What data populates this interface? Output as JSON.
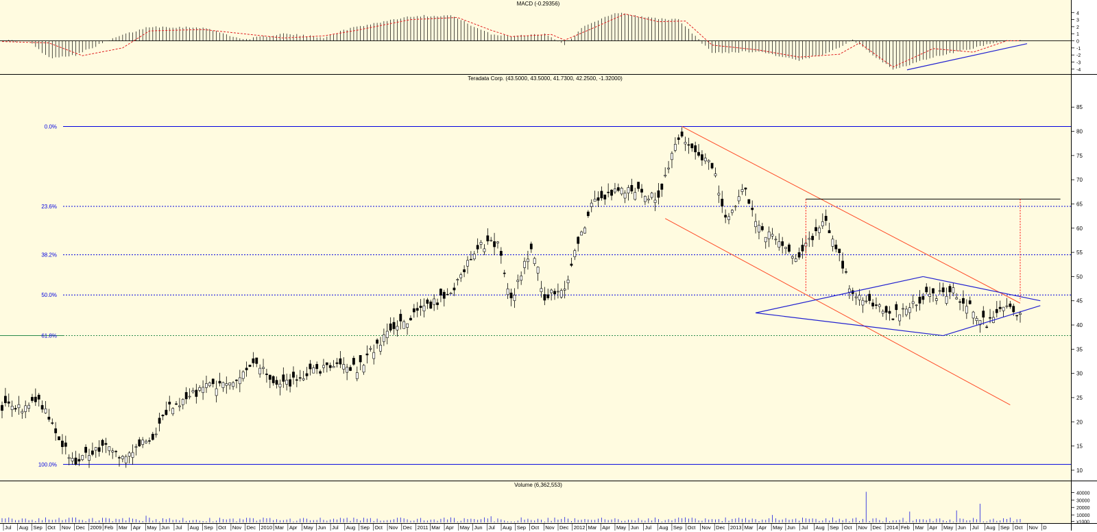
{
  "colors": {
    "panel_bg": "#fffbe0",
    "axis_bg": "#ffffff",
    "candle": "#000000",
    "fib": "#0000e0",
    "fib_618": "#2a8a4a",
    "channel": "#ff4a26",
    "triangle": "#2020d0",
    "macd_signal": "#e02020",
    "volume": "#3030e0",
    "measure": "#ff0000"
  },
  "macd": {
    "title": "MACD (-0.29356)",
    "ylim": [
      -4.5,
      4.8
    ],
    "ticks": [
      {
        "label": "4",
        "v": 4
      },
      {
        "label": "3",
        "v": 3
      },
      {
        "label": "2",
        "v": 2
      },
      {
        "label": "1",
        "v": 1
      },
      {
        "label": "0",
        "v": 0
      },
      {
        "label": "-1",
        "v": -1
      },
      {
        "label": "-2",
        "v": -2
      },
      {
        "label": "-3",
        "v": -3
      },
      {
        "label": "-4",
        "v": -4
      }
    ],
    "hist_keypoints": [
      [
        0,
        0.1
      ],
      [
        8,
        -0.1
      ],
      [
        14,
        -2.4
      ],
      [
        22,
        -2.0
      ],
      [
        34,
        0.5
      ],
      [
        44,
        2.0
      ],
      [
        60,
        1.9
      ],
      [
        72,
        0.2
      ],
      [
        84,
        1.0
      ],
      [
        96,
        0.5
      ],
      [
        104,
        1.8
      ],
      [
        122,
        3.5
      ],
      [
        134,
        3.6
      ],
      [
        146,
        0.9
      ],
      [
        152,
        0.7
      ],
      [
        162,
        1.0
      ],
      [
        168,
        -0.5
      ],
      [
        174,
        2.2
      ],
      [
        184,
        4.0
      ],
      [
        194,
        3.2
      ],
      [
        202,
        3.0
      ],
      [
        212,
        -1.7
      ],
      [
        226,
        -1.5
      ],
      [
        238,
        -2.8
      ],
      [
        246,
        -1.9
      ],
      [
        254,
        0.2
      ],
      [
        266,
        -4.1
      ],
      [
        278,
        -2.3
      ],
      [
        290,
        -1.0
      ],
      [
        300,
        0.0
      ],
      [
        304,
        0.0
      ]
    ],
    "signal_keypoints": [
      [
        0,
        -0.1
      ],
      [
        14,
        -0.3
      ],
      [
        24,
        -2.1
      ],
      [
        36,
        -1.0
      ],
      [
        44,
        1.4
      ],
      [
        60,
        1.6
      ],
      [
        72,
        1.0
      ],
      [
        84,
        0.4
      ],
      [
        96,
        0.7
      ],
      [
        106,
        1.5
      ],
      [
        122,
        3.0
      ],
      [
        136,
        3.3
      ],
      [
        146,
        1.5
      ],
      [
        152,
        0.6
      ],
      [
        164,
        0.9
      ],
      [
        168,
        0.1
      ],
      [
        176,
        1.7
      ],
      [
        186,
        3.8
      ],
      [
        196,
        2.7
      ],
      [
        204,
        2.8
      ],
      [
        212,
        -0.6
      ],
      [
        226,
        -1.3
      ],
      [
        238,
        -2.3
      ],
      [
        250,
        -1.9
      ],
      [
        256,
        -0.3
      ],
      [
        266,
        -3.7
      ],
      [
        278,
        -1.1
      ],
      [
        290,
        -1.6
      ],
      [
        300,
        0.0
      ],
      [
        304,
        0.0
      ]
    ]
  },
  "price": {
    "title": "Teradata Corp. (43.5000, 43.5000, 41.7300, 42.2500, -1.32000)",
    "ylim": [
      8,
      89
    ],
    "ticks": [
      {
        "label": "85",
        "v": 85
      },
      {
        "label": "80",
        "v": 80
      },
      {
        "label": "75",
        "v": 75
      },
      {
        "label": "70",
        "v": 70
      },
      {
        "label": "65",
        "v": 65
      },
      {
        "label": "60",
        "v": 60
      },
      {
        "label": "55",
        "v": 55
      },
      {
        "label": "50",
        "v": 50
      },
      {
        "label": "45",
        "v": 45
      },
      {
        "label": "40",
        "v": 40
      },
      {
        "label": "35",
        "v": 35
      },
      {
        "label": "30",
        "v": 30
      },
      {
        "label": "25",
        "v": 25
      },
      {
        "label": "20",
        "v": 20
      },
      {
        "label": "15",
        "v": 15
      },
      {
        "label": "10",
        "v": 10
      }
    ],
    "fib_levels": [
      {
        "label": "0.0%",
        "v": 81.0,
        "style": "solid"
      },
      {
        "label": "23.6%",
        "v": 64.5,
        "style": "dotted"
      },
      {
        "label": "38.2%",
        "v": 54.5,
        "style": "dotted"
      },
      {
        "label": "50.0%",
        "v": 46.2,
        "style": "dotted"
      },
      {
        "label": "61.8%",
        "v": 37.8,
        "style": "dotted"
      },
      {
        "label": "100.0%",
        "v": 11.2,
        "style": "solid"
      }
    ],
    "close_keypoints": [
      [
        0,
        23
      ],
      [
        6,
        22.5
      ],
      [
        10,
        25
      ],
      [
        14,
        21
      ],
      [
        18,
        15
      ],
      [
        22,
        12
      ],
      [
        30,
        15
      ],
      [
        36,
        13
      ],
      [
        44,
        16
      ],
      [
        50,
        23
      ],
      [
        54,
        24
      ],
      [
        60,
        27
      ],
      [
        68,
        28
      ],
      [
        76,
        32
      ],
      [
        82,
        27
      ],
      [
        92,
        30
      ],
      [
        100,
        32
      ],
      [
        106,
        31
      ],
      [
        112,
        36
      ],
      [
        118,
        40
      ],
      [
        126,
        43
      ],
      [
        134,
        47
      ],
      [
        142,
        56
      ],
      [
        148,
        57
      ],
      [
        152,
        45
      ],
      [
        158,
        56
      ],
      [
        162,
        46
      ],
      [
        168,
        48
      ],
      [
        176,
        65
      ],
      [
        184,
        68
      ],
      [
        190,
        68
      ],
      [
        196,
        66
      ],
      [
        202,
        79
      ],
      [
        212,
        73
      ],
      [
        216,
        62
      ],
      [
        222,
        68
      ],
      [
        226,
        60
      ],
      [
        238,
        54
      ],
      [
        246,
        62
      ],
      [
        254,
        46
      ],
      [
        266,
        42
      ],
      [
        276,
        46
      ],
      [
        284,
        47
      ],
      [
        294,
        40
      ],
      [
        300,
        44
      ],
      [
        304,
        42
      ]
    ]
  },
  "volume": {
    "title": "Volume (6,362,553)",
    "ylim": [
      0,
      45000
    ],
    "ticks": [
      {
        "label": "40000",
        "v": 40000
      },
      {
        "label": "30000",
        "v": 30000
      },
      {
        "label": "20000",
        "v": 20000
      },
      {
        "label": "10000",
        "v": 10000
      },
      {
        "label": "x1000",
        "v": 1500
      }
    ],
    "spikes": [
      [
        43,
        9000
      ],
      [
        146,
        8200
      ],
      [
        168,
        7200
      ],
      [
        230,
        10000
      ],
      [
        258,
        41000
      ],
      [
        271,
        14500
      ],
      [
        285,
        16000
      ],
      [
        292,
        25000
      ]
    ]
  },
  "xaxis": {
    "labels": [
      "Jul",
      "Aug",
      "Sep",
      "Oct",
      "Nov",
      "Dec",
      "2009",
      "Feb",
      "Mar",
      "Apr",
      "May",
      "Jun",
      "Jul",
      "Aug",
      "Sep",
      "Oct",
      "Nov",
      "Dec",
      "2010",
      "Mar",
      "Apr",
      "May",
      "Jun",
      "Jul",
      "Aug",
      "Sep",
      "Oct",
      "Nov",
      "Dec",
      "2011",
      "Mar",
      "Apr",
      "May",
      "Jun",
      "Jul",
      "Aug",
      "Sep",
      "Oct",
      "Nov",
      "Dec",
      "2012",
      "Mar",
      "Apr",
      "May",
      "Jun",
      "Jul",
      "Aug",
      "Sep",
      "Oct",
      "Nov",
      "Dec",
      "2013",
      "Mar",
      "Apr",
      "May",
      "Jun",
      "Jul",
      "Aug",
      "Sep",
      "Oct",
      "Nov",
      "Dec",
      "2014",
      "Feb",
      "Mar",
      "Apr",
      "May",
      "Jun",
      "Jul",
      "Aug",
      "Sep",
      "Oct",
      "Nov",
      "D"
    ]
  },
  "chart_data": {
    "type": "candlestick",
    "title": "Teradata Corp. (43.5000, 43.5000, 41.7300, 42.2500, -1.32000)",
    "x_range": [
      "Jul 2008",
      "Oct 2014"
    ],
    "ylim": [
      8,
      89
    ],
    "last_bar": {
      "open": 43.5,
      "high": 43.5,
      "low": 41.73,
      "close": 42.25,
      "change": -1.32
    },
    "series_highlights": [
      {
        "x": "Nov 2008",
        "low": 11.2
      },
      {
        "x": "Sep 2012",
        "high": 81.0
      },
      {
        "x": "Jul 2013",
        "high": 66.0
      },
      {
        "x": "May 2014",
        "low": 37.8
      }
    ],
    "fibonacci_retracement": [
      {
        "level": "0.0%",
        "value": 81.0
      },
      {
        "level": "23.6%",
        "value": 64.5
      },
      {
        "level": "38.2%",
        "value": 54.5
      },
      {
        "level": "50.0%",
        "value": 46.2
      },
      {
        "level": "61.8%",
        "value": 37.8
      },
      {
        "level": "100.0%",
        "value": 11.2
      }
    ],
    "indicators": [
      {
        "name": "MACD",
        "value": -0.29356,
        "ylim": [
          -4,
          4
        ]
      },
      {
        "name": "Volume",
        "value": 6362553,
        "unit": "x1000",
        "ylim": [
          0,
          40000
        ]
      }
    ],
    "legend": "none",
    "grid": false
  }
}
